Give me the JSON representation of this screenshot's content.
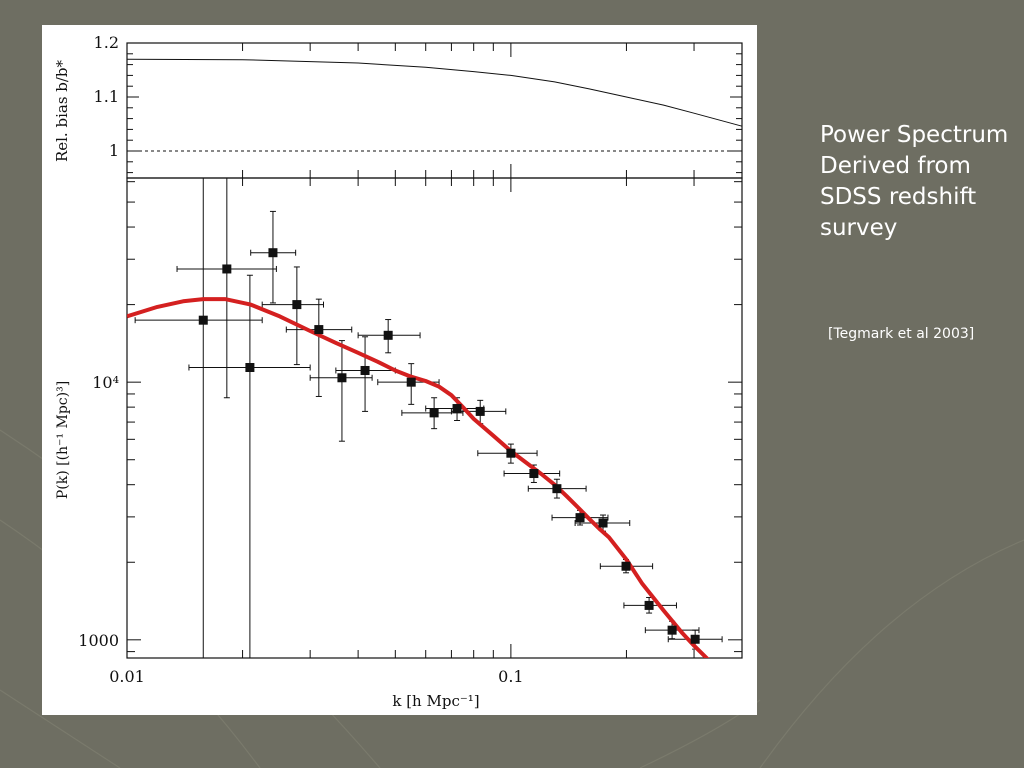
{
  "slide": {
    "title_lines": [
      "Power Spectrum",
      "Derived from",
      "SDSS redshift",
      "survey"
    ],
    "citation": "[Tegmark et al 2003]",
    "background_color": "#6e6e62",
    "text_color": "#ffffff"
  },
  "chart_data": [
    {
      "type": "line",
      "panel": "top",
      "ylabel": "Rel. bias b/b*",
      "xscale": "log",
      "xlim": [
        0.01,
        0.4
      ],
      "ylim": [
        0.95,
        1.2
      ],
      "yticks": [
        {
          "value": 1,
          "label": "1"
        },
        {
          "value": 1.1,
          "label": "1.1"
        },
        {
          "value": 1.2,
          "label": "1.2"
        }
      ],
      "series": [
        {
          "style": "solid",
          "points": [
            [
              0.01,
              1.17
            ],
            [
              0.02,
              1.169
            ],
            [
              0.04,
              1.163
            ],
            [
              0.06,
              1.155
            ],
            [
              0.08,
              1.147
            ],
            [
              0.1,
              1.14
            ],
            [
              0.13,
              1.128
            ],
            [
              0.16,
              1.115
            ],
            [
              0.2,
              1.1
            ],
            [
              0.25,
              1.085
            ],
            [
              0.3,
              1.07
            ],
            [
              0.4,
              1.046
            ]
          ]
        },
        {
          "style": "dashed",
          "points": [
            [
              0.01,
              1.0
            ],
            [
              0.4,
              1.0
            ]
          ]
        }
      ]
    },
    {
      "type": "scatter",
      "panel": "bottom",
      "xlabel": "k [h Mpc⁻¹]",
      "ylabel": "P(k) [(h⁻¹ Mpc)³]",
      "xscale": "log",
      "yscale": "log",
      "xlim": [
        0.01,
        0.4
      ],
      "ylim": [
        850,
        62000
      ],
      "xticks": [
        {
          "value": 0.01,
          "label": "0.01"
        },
        {
          "value": 0.1,
          "label": "0.1"
        }
      ],
      "yticks": [
        {
          "value": 1000,
          "label": "1000"
        },
        {
          "value": 10000,
          "label": "10⁴"
        }
      ],
      "points": [
        {
          "k": 0.0158,
          "P": 17400,
          "k_lo": 0.0105,
          "k_hi": 0.0225,
          "P_lo": 850,
          "P_hi": 70000
        },
        {
          "k": 0.0182,
          "P": 27500,
          "k_lo": 0.0135,
          "k_hi": 0.0245,
          "P_lo": 8700,
          "P_hi": 72000
        },
        {
          "k": 0.0209,
          "P": 11400,
          "k_lo": 0.0145,
          "k_hi": 0.03,
          "P_lo": 850,
          "P_hi": 26000
        },
        {
          "k": 0.024,
          "P": 31800,
          "k_lo": 0.021,
          "k_hi": 0.0275,
          "P_lo": 20300,
          "P_hi": 46000
        },
        {
          "k": 0.0277,
          "P": 20000,
          "k_lo": 0.0225,
          "k_hi": 0.0325,
          "P_lo": 11700,
          "P_hi": 28000
        },
        {
          "k": 0.0316,
          "P": 16000,
          "k_lo": 0.026,
          "k_hi": 0.0385,
          "P_lo": 8800,
          "P_hi": 21000
        },
        {
          "k": 0.0363,
          "P": 10400,
          "k_lo": 0.03,
          "k_hi": 0.0435,
          "P_lo": 5900,
          "P_hi": 14500
        },
        {
          "k": 0.0417,
          "P": 11100,
          "k_lo": 0.035,
          "k_hi": 0.05,
          "P_lo": 7700,
          "P_hi": 15000
        },
        {
          "k": 0.0479,
          "P": 15200,
          "k_lo": 0.04,
          "k_hi": 0.058,
          "P_lo": 13000,
          "P_hi": 17500
        },
        {
          "k": 0.055,
          "P": 10000,
          "k_lo": 0.045,
          "k_hi": 0.065,
          "P_lo": 8200,
          "P_hi": 11800
        },
        {
          "k": 0.0631,
          "P": 7600,
          "k_lo": 0.052,
          "k_hi": 0.075,
          "P_lo": 6600,
          "P_hi": 8700
        },
        {
          "k": 0.0724,
          "P": 7900,
          "k_lo": 0.06,
          "k_hi": 0.085,
          "P_lo": 7100,
          "P_hi": 8700
        },
        {
          "k": 0.0832,
          "P": 7700,
          "k_lo": 0.07,
          "k_hi": 0.097,
          "P_lo": 6900,
          "P_hi": 8500
        },
        {
          "k": 0.1,
          "P": 5300,
          "k_lo": 0.082,
          "k_hi": 0.117,
          "P_lo": 4850,
          "P_hi": 5750
        },
        {
          "k": 0.1148,
          "P": 4420,
          "k_lo": 0.096,
          "k_hi": 0.134,
          "P_lo": 4080,
          "P_hi": 4770
        },
        {
          "k": 0.1318,
          "P": 3860,
          "k_lo": 0.111,
          "k_hi": 0.157,
          "P_lo": 3550,
          "P_hi": 4200
        },
        {
          "k": 0.1514,
          "P": 2980,
          "k_lo": 0.128,
          "k_hi": 0.179,
          "P_lo": 2790,
          "P_hi": 3180
        },
        {
          "k": 0.1738,
          "P": 2840,
          "k_lo": 0.147,
          "k_hi": 0.204,
          "P_lo": 2640,
          "P_hi": 3050
        },
        {
          "k": 0.1995,
          "P": 1930,
          "k_lo": 0.171,
          "k_hi": 0.234,
          "P_lo": 1820,
          "P_hi": 2050
        },
        {
          "k": 0.2291,
          "P": 1360,
          "k_lo": 0.197,
          "k_hi": 0.27,
          "P_lo": 1270,
          "P_hi": 1460
        },
        {
          "k": 0.263,
          "P": 1090,
          "k_lo": 0.224,
          "k_hi": 0.309,
          "P_lo": 1010,
          "P_hi": 1180
        },
        {
          "k": 0.302,
          "P": 1005,
          "k_lo": 0.257,
          "k_hi": 0.355,
          "P_lo": 920,
          "P_hi": 1090
        }
      ],
      "model_curve": {
        "color": "#d42020",
        "points": [
          [
            0.01,
            18000
          ],
          [
            0.012,
            19600
          ],
          [
            0.014,
            20600
          ],
          [
            0.0158,
            21000
          ],
          [
            0.018,
            21000
          ],
          [
            0.021,
            20000
          ],
          [
            0.025,
            18000
          ],
          [
            0.03,
            15800
          ],
          [
            0.035,
            14200
          ],
          [
            0.04,
            13000
          ],
          [
            0.045,
            12000
          ],
          [
            0.05,
            11100
          ],
          [
            0.055,
            10500
          ],
          [
            0.06,
            10100
          ],
          [
            0.065,
            9600
          ],
          [
            0.07,
            8900
          ],
          [
            0.075,
            8000
          ],
          [
            0.08,
            7200
          ],
          [
            0.09,
            6200
          ],
          [
            0.1,
            5400
          ],
          [
            0.11,
            4850
          ],
          [
            0.12,
            4400
          ],
          [
            0.13,
            4000
          ],
          [
            0.14,
            3600
          ],
          [
            0.15,
            3250
          ],
          [
            0.16,
            2950
          ],
          [
            0.17,
            2700
          ],
          [
            0.18,
            2500
          ],
          [
            0.2,
            2050
          ],
          [
            0.22,
            1650
          ],
          [
            0.25,
            1300
          ],
          [
            0.28,
            1060
          ],
          [
            0.3,
            950
          ],
          [
            0.34,
            790
          ]
        ]
      }
    }
  ]
}
